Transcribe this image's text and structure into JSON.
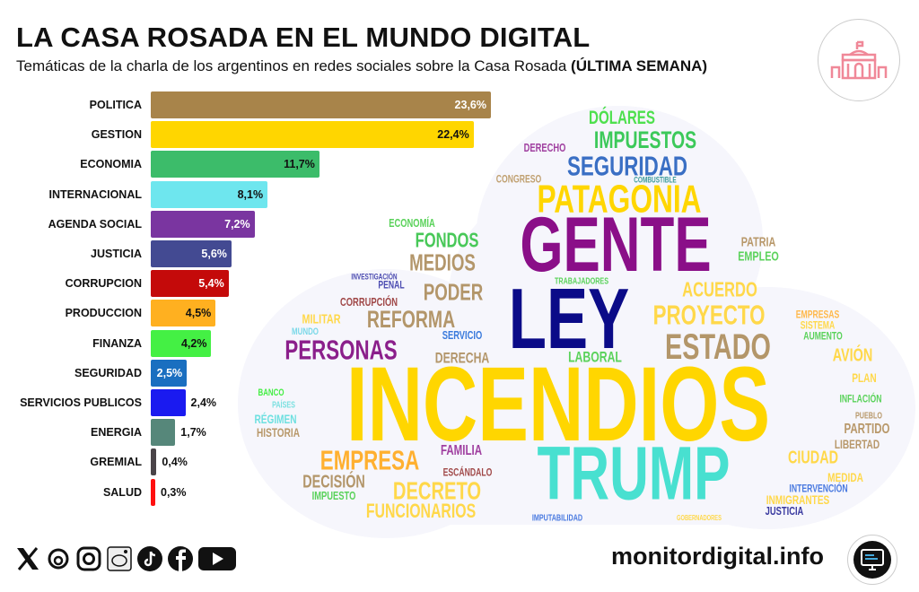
{
  "header": {
    "title": "LA CASA ROSADA EN EL MUNDO DIGITAL",
    "subtitle": "Temáticas de la charla de los argentinos en redes sociales sobre la Casa Rosada",
    "subtitle_bold": "(ÚLTIMA SEMANA)",
    "logo_icon": "casa-rosada-building-icon",
    "logo_color": "#f08898"
  },
  "chart_data": [
    {
      "type": "bar",
      "orientation": "horizontal",
      "title": "",
      "xlabel": "",
      "ylabel": "",
      "xlim": [
        0,
        23.6
      ],
      "grid": false,
      "categories": [
        "POLITICA",
        "GESTION",
        "ECONOMIA",
        "INTERNACIONAL",
        "AGENDA SOCIAL",
        "JUSTICIA",
        "CORRUPCION",
        "PRODUCCION",
        "FINANZA",
        "SEGURIDAD",
        "SERVICIOS PUBLICOS",
        "ENERGIA",
        "GREMIAL",
        "SALUD"
      ],
      "values": [
        23.6,
        22.4,
        11.7,
        8.1,
        7.2,
        5.6,
        5.4,
        4.5,
        4.2,
        2.5,
        2.4,
        1.7,
        0.4,
        0.3
      ],
      "labels": [
        "23,6%",
        "22,4%",
        "11,7%",
        "8,1%",
        "7,2%",
        "5,6%",
        "5,4%",
        "4,5%",
        "4,2%",
        "2,5%",
        "2,4%",
        "1,7%",
        "0,4%",
        "0,3%"
      ],
      "colors": [
        "#a8844a",
        "#ffd600",
        "#3cbc6a",
        "#6ee6ee",
        "#7a35a0",
        "#434a92",
        "#c40a0a",
        "#ffb020",
        "#44f044",
        "#1a6fc0",
        "#1a1af0",
        "#56877a",
        "#4a4448",
        "#ff1010"
      ],
      "label_colors": [
        "#ffffff",
        "#111111",
        "#111111",
        "#111111",
        "#ffffff",
        "#ffffff",
        "#ffffff",
        "#111111",
        "#111111",
        "#ffffff",
        "#ffffff",
        "#111111",
        "#111111",
        "#111111"
      ]
    },
    {
      "type": "wordcloud",
      "words": [
        {
          "text": "INCENDIOS",
          "color": "#ffd600"
        },
        {
          "text": "GENTE",
          "color": "#8a0f88"
        },
        {
          "text": "LEY",
          "color": "#0b0b88"
        },
        {
          "text": "TRUMP",
          "color": "#48e0d0"
        },
        {
          "text": "PATAGONIA",
          "color": "#ffd600"
        },
        {
          "text": "ESTADO",
          "color": "#b3966a"
        },
        {
          "text": "SEGURIDAD",
          "color": "#3a6fc4"
        },
        {
          "text": "PERSONAS",
          "color": "#8b1f8b"
        },
        {
          "text": "PROYECTO",
          "color": "#ffd84a"
        },
        {
          "text": "IMPUESTOS",
          "color": "#3cc95a"
        },
        {
          "text": "EMPRESA",
          "color": "#ffb030"
        },
        {
          "text": "DECRETO",
          "color": "#ffd84a"
        },
        {
          "text": "REFORMA",
          "color": "#b3966a"
        },
        {
          "text": "MEDIOS",
          "color": "#b3966a"
        },
        {
          "text": "PODER",
          "color": "#b3966a"
        },
        {
          "text": "FONDOS",
          "color": "#48c858"
        },
        {
          "text": "ACUERDO",
          "color": "#ffd84a"
        },
        {
          "text": "DÓLARES",
          "color": "#4ee04e"
        },
        {
          "text": "FUNCIONARIOS",
          "color": "#ffd84a"
        },
        {
          "text": "DECISIÓN",
          "color": "#b3966a"
        },
        {
          "text": "AVIÓN",
          "color": "#ffd84a"
        },
        {
          "text": "CIUDAD",
          "color": "#ffd84a"
        },
        {
          "text": "DERECHA",
          "color": "#b3966a"
        },
        {
          "text": "LABORAL",
          "color": "#5ad25a"
        },
        {
          "text": "FAMILIA",
          "color": "#a040a0"
        },
        {
          "text": "PATRIA",
          "color": "#b8986a"
        },
        {
          "text": "EMPLEO",
          "color": "#5ad25a"
        },
        {
          "text": "PARTIDO",
          "color": "#b8986a"
        },
        {
          "text": "MILITAR",
          "color": "#ffd84a"
        },
        {
          "text": "RÉGIMEN",
          "color": "#6ee0e0"
        },
        {
          "text": "HISTORIA",
          "color": "#b8986a"
        },
        {
          "text": "LIBERTAD",
          "color": "#b8986a"
        },
        {
          "text": "MEDIDA",
          "color": "#ffd84a"
        },
        {
          "text": "PLAN",
          "color": "#ffd84a"
        },
        {
          "text": "INMIGRANTES",
          "color": "#ffd84a"
        },
        {
          "text": "DERECHO",
          "color": "#a040a0"
        },
        {
          "text": "ECONOMÍA",
          "color": "#5ad25a"
        },
        {
          "text": "CORRUPCIÓN",
          "color": "#a04848"
        },
        {
          "text": "SERVICIO",
          "color": "#3a7adc"
        },
        {
          "text": "IMPUESTO",
          "color": "#5ad25a"
        },
        {
          "text": "JUSTICIA",
          "color": "#3a3aa0"
        },
        {
          "text": "PENAL",
          "color": "#4a4ab0"
        },
        {
          "text": "EMPRESAS",
          "color": "#ffb84a"
        },
        {
          "text": "SISTEMA",
          "color": "#ffd84a"
        },
        {
          "text": "AUMENTO",
          "color": "#5ad25a"
        },
        {
          "text": "INFLACIÓN",
          "color": "#5ad25a"
        },
        {
          "text": "INTERVENCIÓN",
          "color": "#4a7ae0"
        },
        {
          "text": "ESCÁNDALO",
          "color": "#a04848"
        },
        {
          "text": "CONGRESO",
          "color": "#c0a070"
        },
        {
          "text": "MUNDO",
          "color": "#7ad8e8"
        },
        {
          "text": "BANCO",
          "color": "#44ee44"
        },
        {
          "text": "PUEBLO",
          "color": "#b8986a"
        },
        {
          "text": "TRABAJADORES",
          "color": "#5ad25a"
        },
        {
          "text": "PAÍSES",
          "color": "#7ae0e0"
        },
        {
          "text": "INVESTIGACIÓN",
          "color": "#4a4ab0"
        },
        {
          "text": "COMBUSTIBLE",
          "color": "#3a9a9a"
        },
        {
          "text": "IMPUTABILIDAD",
          "color": "#4a7ae0"
        },
        {
          "text": "GOBERNADORES",
          "color": "#ffd84a"
        }
      ]
    }
  ],
  "footer": {
    "site": "monitordigital.info",
    "social_icons": [
      "x-icon",
      "threads-icon",
      "instagram-icon",
      "reddit-icon",
      "tiktok-icon",
      "facebook-icon",
      "youtube-icon"
    ],
    "site_icon": "monitor-icon"
  }
}
